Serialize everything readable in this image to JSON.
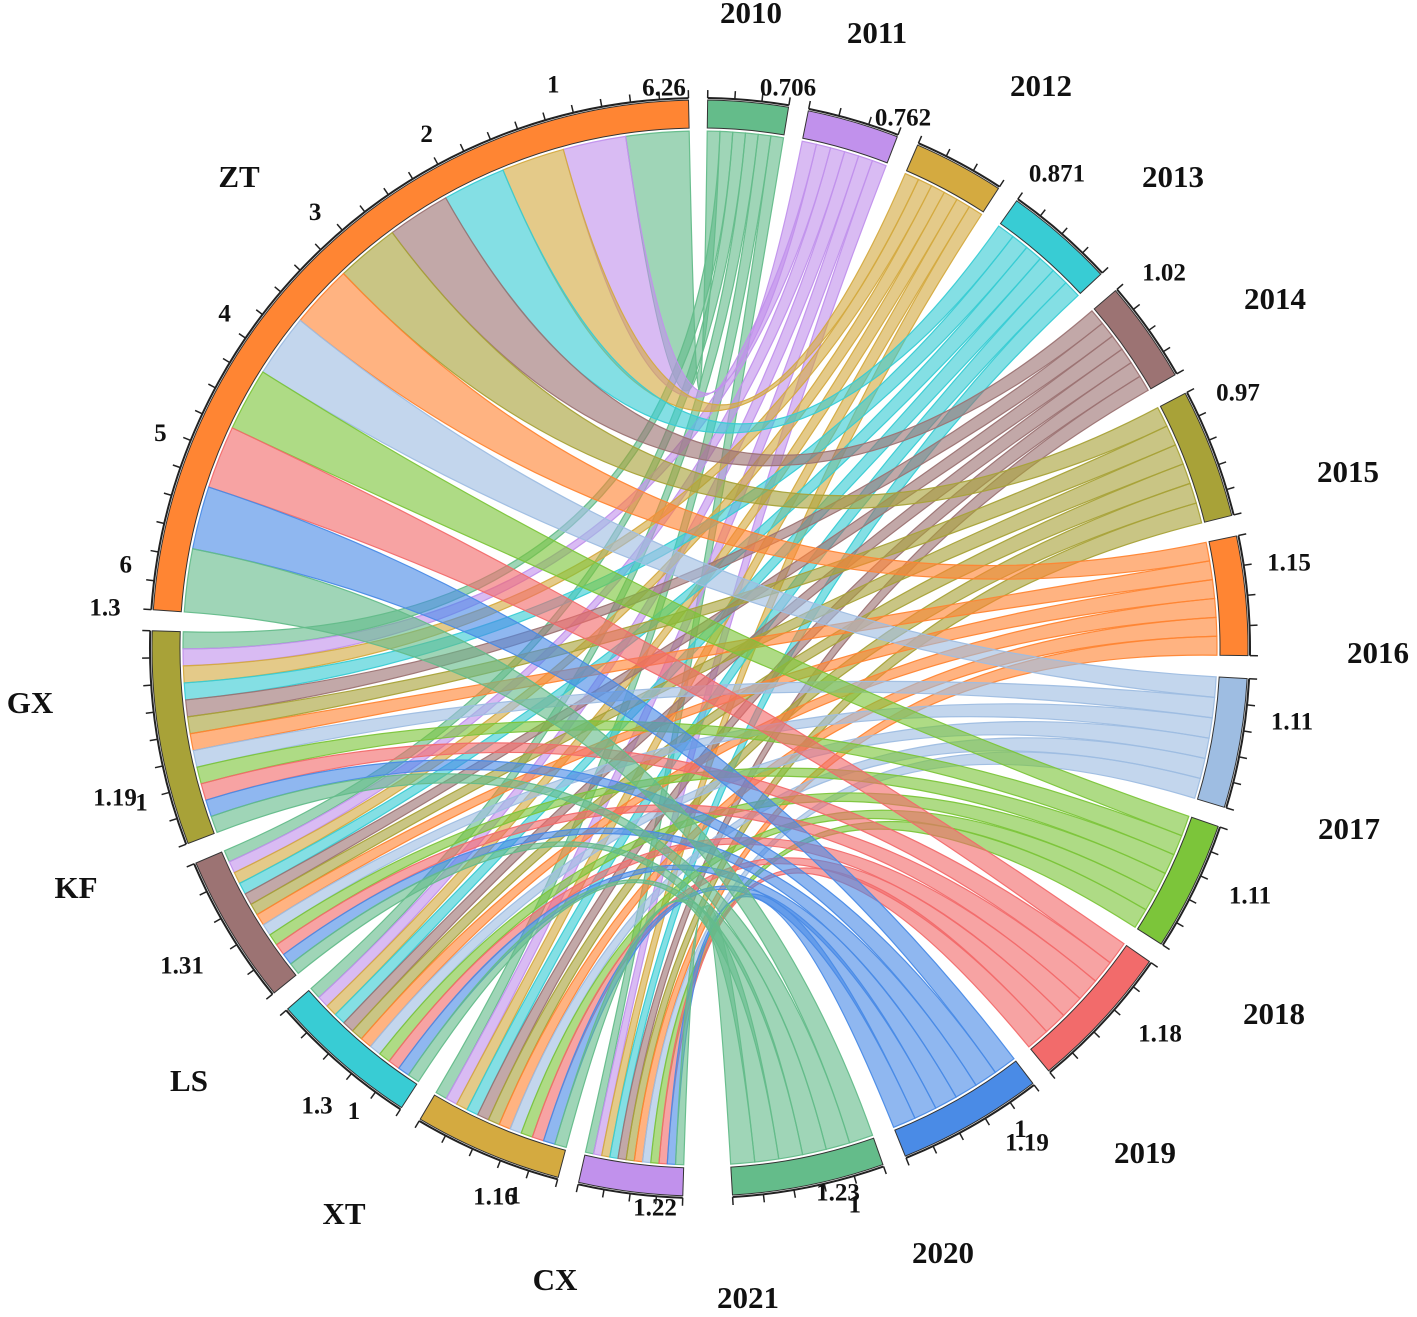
{
  "chart_data": {
    "type": "chord",
    "sources": [
      {
        "name": "ZT",
        "color": "#FF8533",
        "end_label": "6.26",
        "start_label": "1.3",
        "ticks": [
          "1",
          "2",
          "3",
          "4",
          "5",
          "6"
        ]
      },
      {
        "name": "GX",
        "color": "#A8A238",
        "end_label": "1.3",
        "start_label": "1.19",
        "ticks": [
          "1"
        ]
      },
      {
        "name": "KF",
        "color": "#9C7373",
        "end_label": "1.19",
        "start_label": "1.31",
        "ticks": []
      },
      {
        "name": "LS",
        "color": "#38CCD4",
        "end_label": "1.31",
        "start_label": "1.3",
        "ticks": [
          "1"
        ]
      },
      {
        "name": "XT",
        "color": "#D4AA40",
        "end_label": "1.3",
        "start_label": "1.16",
        "ticks": [
          "1"
        ]
      },
      {
        "name": "CX",
        "color": "#C191EC",
        "end_label": "1.16",
        "start_label": "1.22",
        "ticks": []
      }
    ],
    "targets": [
      {
        "name": "2010",
        "color": "#64BC8A",
        "end_label": "0.706",
        "ticks": []
      },
      {
        "name": "2011",
        "color": "#C191EC",
        "end_label": "0.762",
        "ticks": []
      },
      {
        "name": "2012",
        "color": "#D4AA40",
        "end_label": "0.871",
        "ticks": []
      },
      {
        "name": "2013",
        "color": "#38CCD4",
        "end_label": "1.02",
        "ticks": []
      },
      {
        "name": "2014",
        "color": "#9C7373",
        "end_label": "0.97",
        "ticks": []
      },
      {
        "name": "2015",
        "color": "#A8A238",
        "end_label": "1.15",
        "ticks": []
      },
      {
        "name": "2016",
        "color": "#FF8533",
        "end_label": "1.11",
        "ticks": []
      },
      {
        "name": "2017",
        "color": "#9EBDE2",
        "end_label": "1.11",
        "ticks": []
      },
      {
        "name": "2018",
        "color": "#7CC53A",
        "end_label": "1.18",
        "ticks": []
      },
      {
        "name": "2019",
        "color": "#F26B6B",
        "end_label": "1.19",
        "ticks": []
      },
      {
        "name": "2020",
        "color": "#4A8BE6",
        "end_label": "1.23",
        "ticks": [
          "1"
        ]
      },
      {
        "name": "2021",
        "color": "#64BC8A",
        "end_label": "1.22",
        "ticks": [
          "1"
        ]
      }
    ],
    "flows_note": "Each target year connects to each source region; approximate equal split per source",
    "legend": "none"
  }
}
